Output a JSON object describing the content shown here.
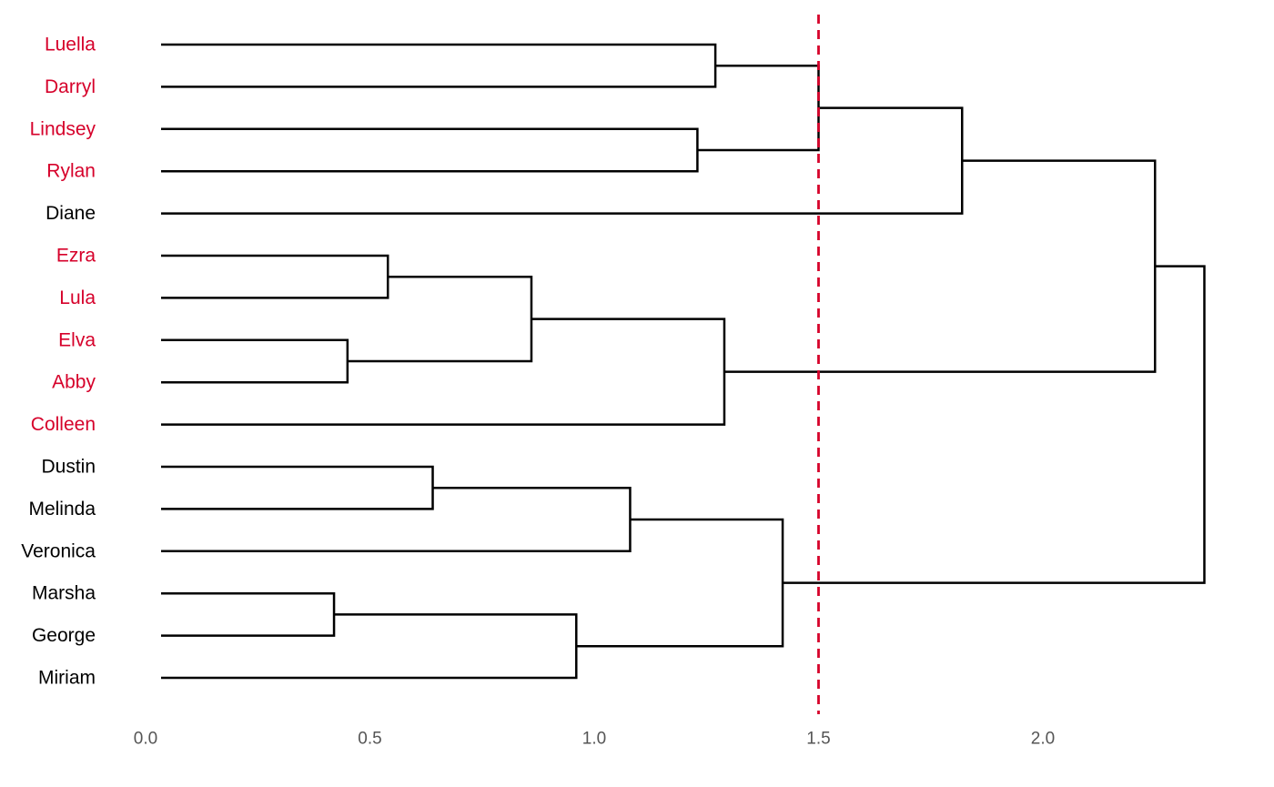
{
  "colors": {
    "highlight": "#d6002a",
    "default_label": "#000000",
    "cutoff": "#d6002a",
    "branch": "#000000",
    "tick": "#555555"
  },
  "chart_data": {
    "type": "dendrogram",
    "orientation": "horizontal",
    "xlim": [
      0,
      2.4
    ],
    "xticks": [
      {
        "value": 0.0,
        "label": "0.0"
      },
      {
        "value": 0.5,
        "label": "0.5"
      },
      {
        "value": 1.0,
        "label": "1.0"
      },
      {
        "value": 1.5,
        "label": "1.5"
      },
      {
        "value": 2.0,
        "label": "2.0"
      }
    ],
    "cutoff": 1.5,
    "grid": false,
    "leaves": [
      {
        "name": "Luella",
        "highlight": true
      },
      {
        "name": "Darryl",
        "highlight": true
      },
      {
        "name": "Lindsey",
        "highlight": true
      },
      {
        "name": "Rylan",
        "highlight": true
      },
      {
        "name": "Diane",
        "highlight": false
      },
      {
        "name": "Ezra",
        "highlight": true
      },
      {
        "name": "Lula",
        "highlight": true
      },
      {
        "name": "Elva",
        "highlight": true
      },
      {
        "name": "Abby",
        "highlight": true
      },
      {
        "name": "Colleen",
        "highlight": true
      },
      {
        "name": "Dustin",
        "highlight": false
      },
      {
        "name": "Melinda",
        "highlight": false
      },
      {
        "name": "Veronica",
        "highlight": false
      },
      {
        "name": "Marsha",
        "highlight": false
      },
      {
        "name": "George",
        "highlight": false
      },
      {
        "name": "Miriam",
        "highlight": false
      }
    ],
    "merges": [
      {
        "id": "m1",
        "left": "Luella",
        "right": "Darryl",
        "height": 1.27
      },
      {
        "id": "m2",
        "left": "Lindsey",
        "right": "Rylan",
        "height": 1.23
      },
      {
        "id": "m3",
        "left": "m1",
        "right": "m2",
        "height": 1.5
      },
      {
        "id": "m4",
        "left": "m3",
        "right": "Diane",
        "height": 1.82
      },
      {
        "id": "m5",
        "left": "Ezra",
        "right": "Lula",
        "height": 0.54
      },
      {
        "id": "m6",
        "left": "Elva",
        "right": "Abby",
        "height": 0.45
      },
      {
        "id": "m7",
        "left": "m5",
        "right": "m6",
        "height": 0.86
      },
      {
        "id": "m8",
        "left": "m7",
        "right": "Colleen",
        "height": 1.29
      },
      {
        "id": "m9",
        "left": "m4",
        "right": "m8",
        "height": 2.25
      },
      {
        "id": "m10",
        "left": "Dustin",
        "right": "Melinda",
        "height": 0.64
      },
      {
        "id": "m11",
        "left": "m10",
        "right": "Veronica",
        "height": 1.08
      },
      {
        "id": "m12",
        "left": "Marsha",
        "right": "George",
        "height": 0.42
      },
      {
        "id": "m13",
        "left": "m12",
        "right": "Miriam",
        "height": 0.96
      },
      {
        "id": "m14",
        "left": "m11",
        "right": "m13",
        "height": 1.42
      },
      {
        "id": "m15",
        "left": "m9",
        "right": "m14",
        "height": 2.36
      }
    ]
  }
}
